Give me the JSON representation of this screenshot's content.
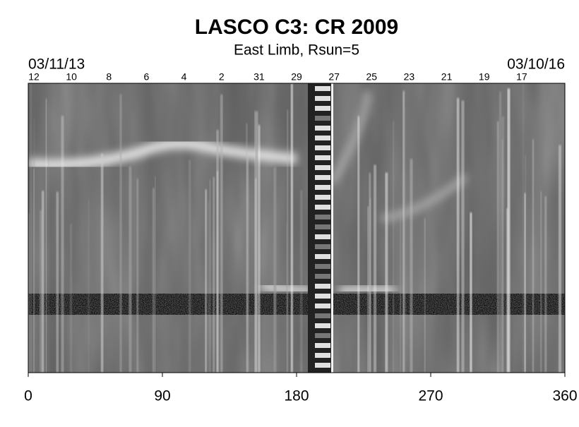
{
  "chart_data": {
    "type": "synoptic-map",
    "title": "LASCO C3: CR 2009",
    "subtitle": "East Limb, Rsun=5",
    "start_date": "03/11/13",
    "end_date": "03/10/16",
    "categories": [
      "12",
      "10",
      "8",
      "6",
      "4",
      "2",
      "31",
      "29",
      "27",
      "25",
      "23",
      "21",
      "19",
      "17"
    ],
    "xlim": [
      0,
      360
    ],
    "xticks": [
      0,
      90,
      180,
      270,
      360
    ]
  }
}
